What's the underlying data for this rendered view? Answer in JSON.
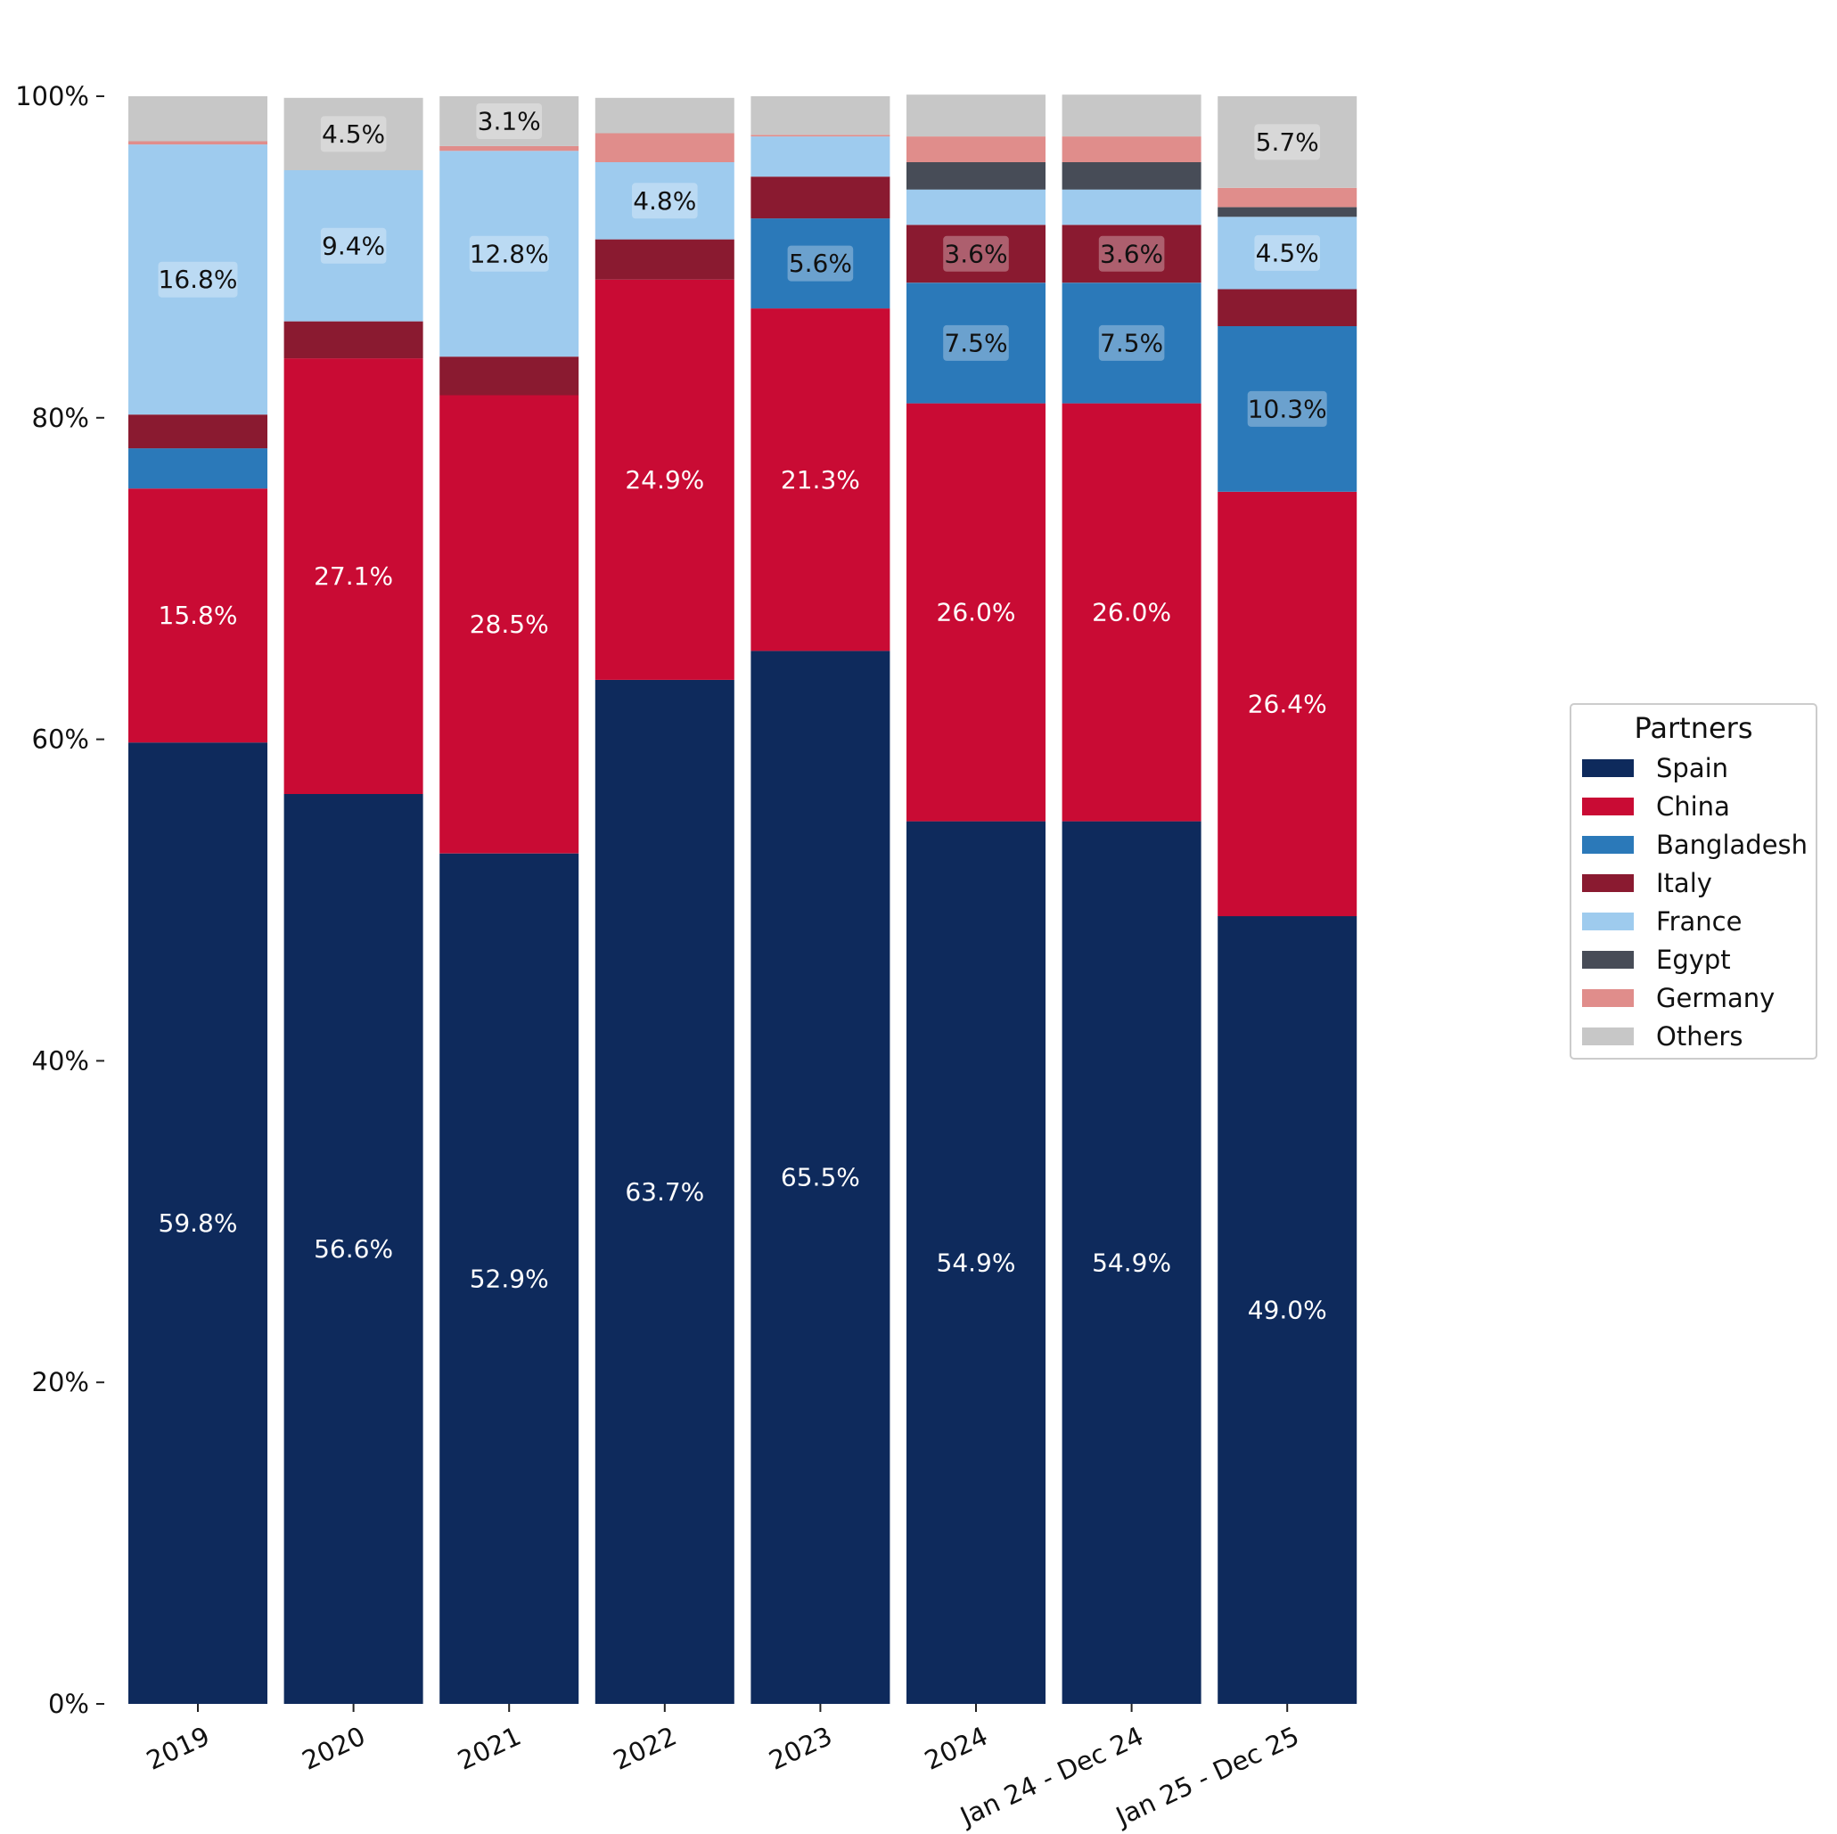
{
  "chart_data": {
    "type": "bar",
    "stacked": true,
    "categories": [
      "2019",
      "2020",
      "2021",
      "2022",
      "2023",
      "2024",
      "Jan 24 - Dec 24",
      "Jan 25 - Dec 25"
    ],
    "ylim": [
      0,
      100
    ],
    "y_ticks": [
      "0%",
      "20%",
      "40%",
      "60%",
      "80%",
      "100%"
    ],
    "legend_title": "Partners",
    "legend_position": "right",
    "series": [
      {
        "name": "Spain",
        "color": "#0e2a5c",
        "label_color": "#ffffff",
        "label_box": false,
        "values": [
          59.8,
          56.6,
          52.9,
          63.7,
          65.5,
          54.9,
          54.9,
          49.0
        ],
        "labels": [
          "59.8%",
          "56.6%",
          "52.9%",
          "63.7%",
          "65.5%",
          "54.9%",
          "54.9%",
          "49.0%"
        ]
      },
      {
        "name": "China",
        "color": "#c90b34",
        "label_color": "#ffffff",
        "label_box": false,
        "values": [
          15.8,
          27.1,
          28.5,
          24.9,
          21.3,
          26.0,
          26.0,
          26.4
        ],
        "labels": [
          "15.8%",
          "27.1%",
          "28.5%",
          "24.9%",
          "21.3%",
          "26.0%",
          "26.0%",
          "26.4%"
        ]
      },
      {
        "name": "Bangladesh",
        "color": "#2b79b9",
        "label_color": "#111111",
        "label_box": true,
        "values": [
          2.5,
          0,
          0,
          0,
          5.6,
          7.5,
          7.5,
          10.3
        ],
        "labels": [
          "",
          "",
          "",
          "",
          "5.6%",
          "7.5%",
          "7.5%",
          "10.3%"
        ]
      },
      {
        "name": "Italy",
        "color": "#8a1a30",
        "label_color": "#111111",
        "label_box": true,
        "values": [
          2.1,
          2.3,
          2.4,
          2.5,
          2.6,
          3.6,
          3.6,
          2.3
        ],
        "labels": [
          "",
          "",
          "",
          "",
          "",
          "3.6%",
          "3.6%",
          ""
        ]
      },
      {
        "name": "France",
        "color": "#9ecbee",
        "label_color": "#111111",
        "label_box": true,
        "values": [
          16.8,
          9.4,
          12.8,
          4.8,
          2.5,
          2.2,
          2.2,
          4.5
        ],
        "labels": [
          "16.8%",
          "9.4%",
          "12.8%",
          "4.8%",
          "",
          "",
          "",
          "4.5%"
        ]
      },
      {
        "name": "Egypt",
        "color": "#474c57",
        "label_color": "#111111",
        "label_box": true,
        "values": [
          0,
          0,
          0,
          0,
          0,
          1.7,
          1.7,
          0.6
        ],
        "labels": [
          "",
          "",
          "",
          "",
          "",
          "",
          "",
          ""
        ]
      },
      {
        "name": "Germany",
        "color": "#e08d8b",
        "label_color": "#111111",
        "label_box": true,
        "values": [
          0.2,
          0,
          0.3,
          1.8,
          0.1,
          1.6,
          1.6,
          1.2
        ],
        "labels": [
          "",
          "",
          "",
          "",
          "",
          "",
          "",
          ""
        ]
      },
      {
        "name": "Others",
        "color": "#c7c7c7",
        "label_color": "#111111",
        "label_box": true,
        "values": [
          2.8,
          4.5,
          3.1,
          2.2,
          2.4,
          2.6,
          2.6,
          5.7
        ],
        "labels": [
          "",
          "4.5%",
          "3.1%",
          "",
          "",
          "",
          "",
          "5.7%"
        ]
      }
    ]
  }
}
